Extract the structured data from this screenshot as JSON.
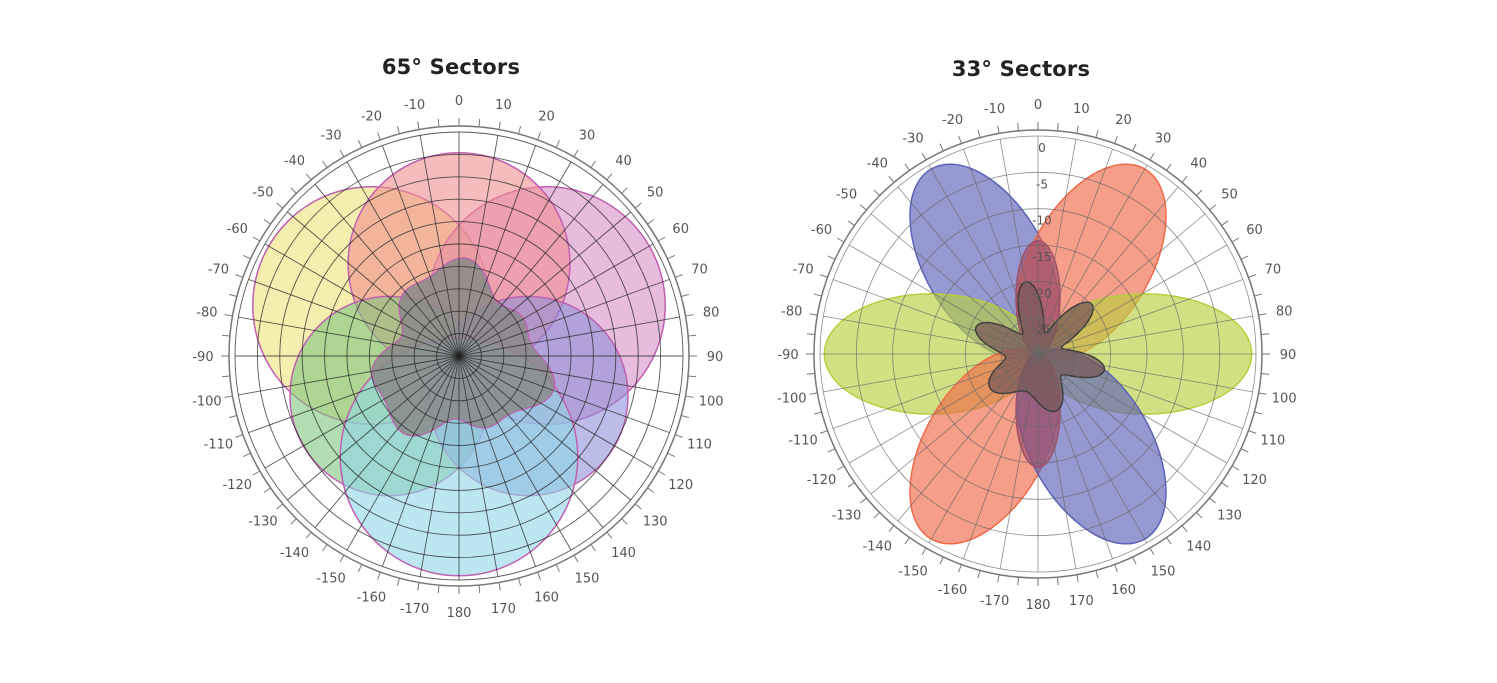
{
  "chart_data": [
    {
      "type": "polar",
      "title": "65° Sectors",
      "angle_ticks": [
        0,
        10,
        20,
        30,
        40,
        50,
        60,
        70,
        80,
        90,
        100,
        110,
        120,
        130,
        140,
        150,
        160,
        170,
        180,
        -170,
        -160,
        -150,
        -140,
        -130,
        -120,
        -110,
        -100,
        -90,
        -80,
        -70,
        -60,
        -50,
        -40,
        -30,
        -20,
        -10
      ],
      "angle_tick_labels": [
        "0",
        "10",
        "20",
        "30",
        "40",
        "50",
        "60",
        "70",
        "80",
        "90",
        "100",
        "110",
        "120",
        "130",
        "140",
        "150",
        "160",
        "170",
        "180",
        "-170",
        "-160",
        "-150",
        "-140",
        "-130",
        "-120",
        "-110",
        "-100",
        "-90",
        "-80",
        "-70",
        "-60",
        "-50",
        "-40",
        "-30",
        "-20",
        "-10"
      ],
      "radial_range": [
        0,
        1
      ],
      "grid": true,
      "series": [
        {
          "color": "#f0e27a",
          "center_angle": -60,
          "beamwidth": 65,
          "rel_radius": [
            0,
            0.82
          ]
        },
        {
          "color": "#d98fc4",
          "center_angle": 60,
          "beamwidth": 65,
          "rel_radius": [
            0,
            0.82
          ]
        },
        {
          "color": "#f08f8f",
          "center_angle": 0,
          "beamwidth": 65,
          "rel_radius": [
            0,
            0.75
          ]
        },
        {
          "color": "#7fc47f",
          "center_angle": -120,
          "beamwidth": 65,
          "rel_radius": [
            0,
            0.65
          ]
        },
        {
          "color": "#8f8fd8",
          "center_angle": 120,
          "beamwidth": 65,
          "rel_radius": [
            0,
            0.65
          ]
        },
        {
          "color": "#8fd7e8",
          "center_angle": 180,
          "beamwidth": 65,
          "rel_radius": [
            0,
            0.82
          ]
        },
        {
          "color": "#8a8a8a",
          "center_angle": 0,
          "beamwidth": 360,
          "rel_radius": [
            0.3,
            0.4
          ]
        }
      ]
    },
    {
      "type": "polar",
      "title": "33° Sectors",
      "angle_ticks": [
        0,
        10,
        20,
        30,
        40,
        50,
        60,
        70,
        80,
        90,
        100,
        110,
        120,
        130,
        140,
        150,
        160,
        170,
        180,
        -170,
        -160,
        -150,
        -140,
        -130,
        -120,
        -110,
        -100,
        -90,
        -80,
        -70,
        -60,
        -50,
        -40,
        -30,
        -20,
        -10
      ],
      "angle_tick_labels": [
        "0",
        "10",
        "20",
        "30",
        "40",
        "50",
        "60",
        "70",
        "80",
        "90",
        "100",
        "110",
        "120",
        "130",
        "140",
        "150",
        "160",
        "170",
        "180",
        "-170",
        "-160",
        "-150",
        "-140",
        "-130",
        "-120",
        "-110",
        "-100",
        "-90",
        "-80",
        "-70",
        "-60",
        "-50",
        "-40",
        "-30",
        "-20",
        "-10"
      ],
      "radial_tick_labels": [
        "0",
        "-5",
        "-10",
        "-15",
        "-20",
        "-25"
      ],
      "radial_range": [
        -30,
        0
      ],
      "grid": true,
      "series": [
        {
          "color": "#5c62b8",
          "center_angle": -30,
          "beamwidth": 33
        },
        {
          "color": "#f06a4a",
          "center_angle": 30,
          "beamwidth": 33
        },
        {
          "color": "#b8cf3f",
          "center_angle": -90,
          "beamwidth": 33
        },
        {
          "color": "#b8cf3f",
          "center_angle": 90,
          "beamwidth": 33
        },
        {
          "color": "#f06a4a",
          "center_angle": -150,
          "beamwidth": 33
        },
        {
          "color": "#5c62b8",
          "center_angle": 150,
          "beamwidth": 33
        },
        {
          "color": "#a0506a",
          "center_angle": 0,
          "beamwidth": 33
        },
        {
          "color": "#a0506a",
          "center_angle": 180,
          "beamwidth": 33
        },
        {
          "color": "#7a5a5a",
          "center_angle": 0,
          "beamwidth": 360
        }
      ]
    }
  ]
}
